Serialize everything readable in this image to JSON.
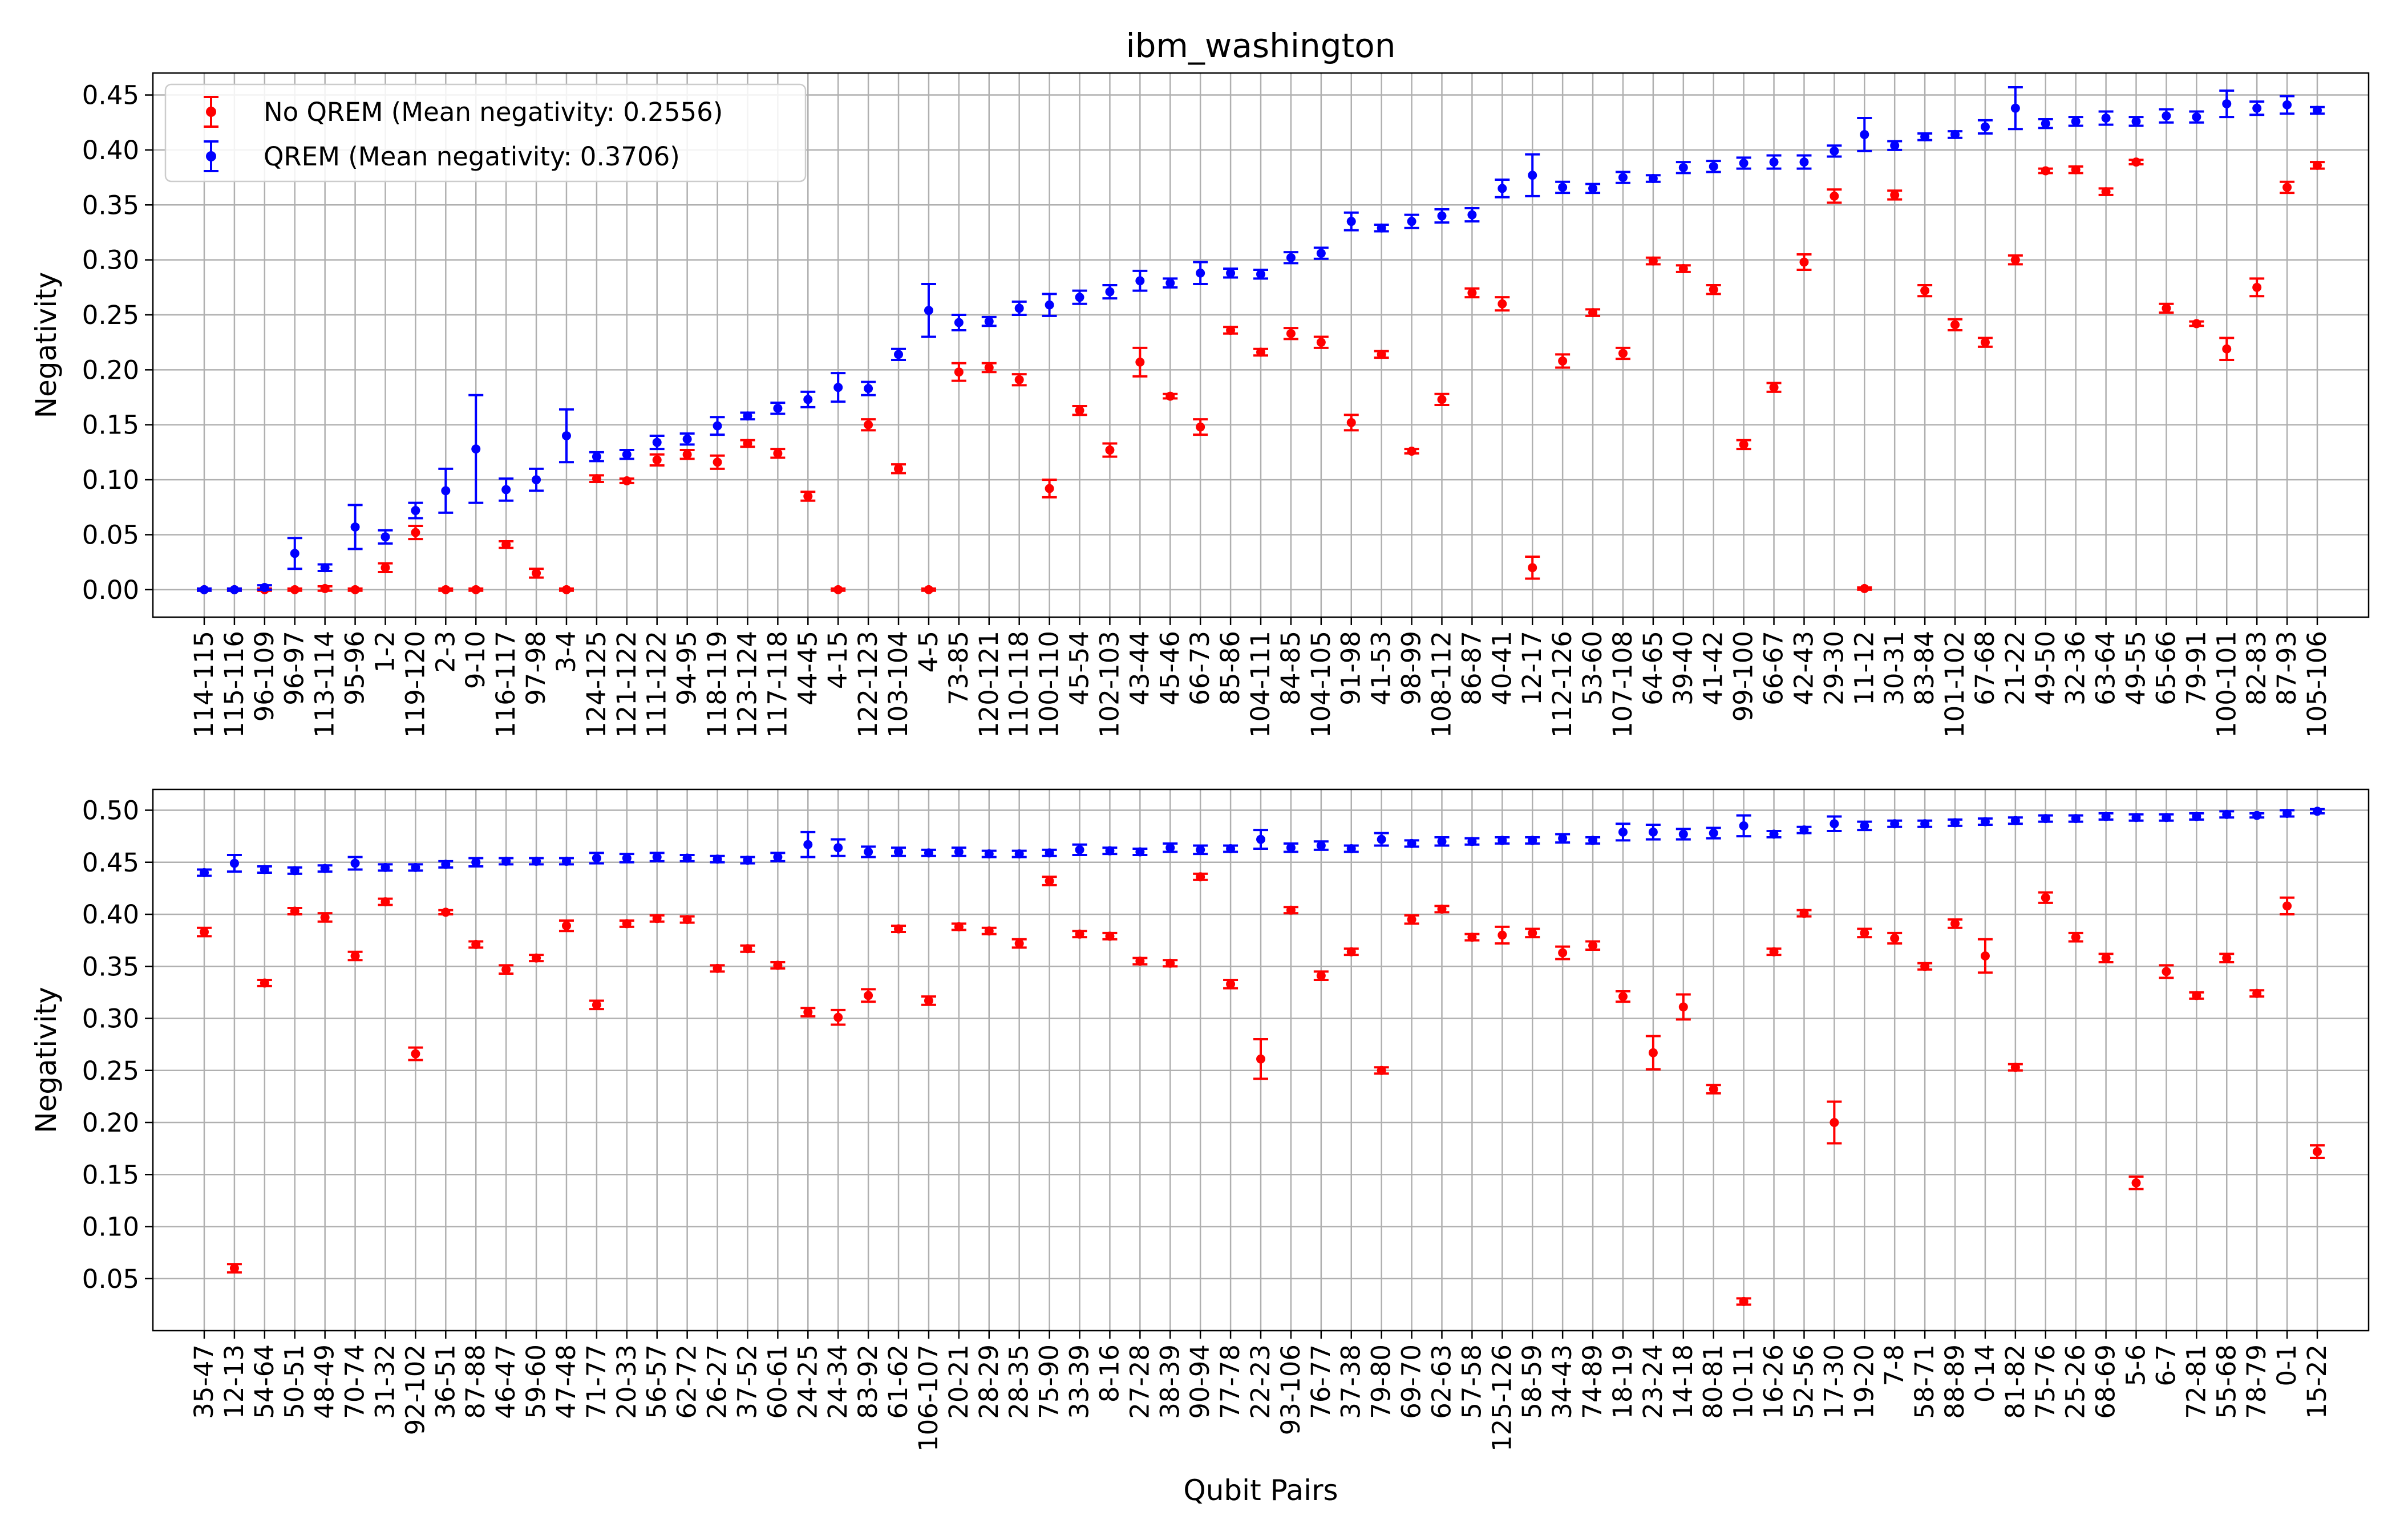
{
  "figure": {
    "title": "ibm_washington",
    "xlabel": "Qubit Pairs"
  },
  "colors": {
    "no_qrem": "#ff0000",
    "qrem": "#0000ff",
    "grid": "#b0b0b0"
  },
  "chart_data": [
    {
      "type": "scatter",
      "title": "ibm_washington",
      "xlabel": "",
      "ylabel": "Negativity",
      "ylim": [
        -0.025,
        0.47
      ],
      "yticks": [
        "0.00",
        "0.05",
        "0.10",
        "0.15",
        "0.20",
        "0.25",
        "0.30",
        "0.35",
        "0.40",
        "0.45"
      ],
      "grid": true,
      "legend_position": "top-left",
      "legend": [
        "No QREM (Mean negativity: 0.2556)",
        "QREM (Mean negativity: 0.3706)"
      ],
      "categories": [
        "114-115",
        "115-116",
        "96-109",
        "96-97",
        "113-114",
        "95-96",
        "1-2",
        "119-120",
        "2-3",
        "9-10",
        "116-117",
        "97-98",
        "3-4",
        "124-125",
        "121-122",
        "111-122",
        "94-95",
        "118-119",
        "123-124",
        "117-118",
        "44-45",
        "4-15",
        "122-123",
        "103-104",
        "4-5",
        "73-85",
        "120-121",
        "110-118",
        "100-110",
        "45-54",
        "102-103",
        "43-44",
        "45-46",
        "66-73",
        "85-86",
        "104-111",
        "84-85",
        "104-105",
        "91-98",
        "41-53",
        "98-99",
        "108-112",
        "86-87",
        "40-41",
        "12-17",
        "112-126",
        "53-60",
        "107-108",
        "64-65",
        "39-40",
        "41-42",
        "99-100",
        "66-67",
        "42-43",
        "29-30",
        "11-12",
        "30-31",
        "83-84",
        "101-102",
        "67-68",
        "21-22",
        "49-50",
        "32-36",
        "63-64",
        "49-55",
        "65-66",
        "79-91",
        "100-101",
        "82-83",
        "87-93",
        "105-106"
      ],
      "series": [
        {
          "name": "No QREM (Mean negativity: 0.2556)",
          "color": "#ff0000",
          "values": [
            0.0,
            0.0,
            0.0,
            0.0,
            0.001,
            0.0,
            0.02,
            0.052,
            0.0,
            0.0,
            0.041,
            0.015,
            0.0,
            0.101,
            0.099,
            0.118,
            0.123,
            0.116,
            0.133,
            0.124,
            0.085,
            0.0,
            0.15,
            0.11,
            0.0,
            0.198,
            0.202,
            0.191,
            0.092,
            0.163,
            0.127,
            0.207,
            0.176,
            0.148,
            0.236,
            0.216,
            0.233,
            0.225,
            0.152,
            0.214,
            0.126,
            0.173,
            0.27,
            0.26,
            0.02,
            0.208,
            0.252,
            0.215,
            0.299,
            0.292,
            0.273,
            0.132,
            0.184,
            0.298,
            0.358,
            0.001,
            0.359,
            0.272,
            0.241,
            0.225,
            0.3,
            0.381,
            0.382,
            0.362,
            0.389,
            0.256,
            0.242,
            0.219,
            0.275,
            0.366,
            0.386
          ],
          "errors": [
            0.001,
            0.001,
            0.001,
            0.001,
            0.002,
            0.001,
            0.004,
            0.006,
            0.001,
            0.001,
            0.003,
            0.004,
            0.001,
            0.003,
            0.002,
            0.005,
            0.004,
            0.006,
            0.003,
            0.004,
            0.004,
            0.001,
            0.005,
            0.004,
            0.001,
            0.008,
            0.004,
            0.005,
            0.008,
            0.004,
            0.006,
            0.013,
            0.002,
            0.007,
            0.003,
            0.003,
            0.005,
            0.005,
            0.007,
            0.003,
            0.002,
            0.005,
            0.004,
            0.006,
            0.01,
            0.006,
            0.003,
            0.005,
            0.003,
            0.003,
            0.004,
            0.004,
            0.004,
            0.007,
            0.006,
            0.001,
            0.004,
            0.005,
            0.005,
            0.004,
            0.004,
            0.002,
            0.003,
            0.003,
            0.002,
            0.004,
            0.002,
            0.01,
            0.008,
            0.005,
            0.003
          ]
        },
        {
          "name": "QREM (Mean negativity: 0.3706)",
          "color": "#0000ff",
          "values": [
            0.0,
            0.0,
            0.002,
            0.033,
            0.02,
            0.057,
            0.048,
            0.072,
            0.09,
            0.128,
            0.091,
            0.1,
            0.14,
            0.121,
            0.123,
            0.134,
            0.137,
            0.149,
            0.158,
            0.165,
            0.173,
            0.184,
            0.183,
            0.214,
            0.254,
            0.243,
            0.244,
            0.256,
            0.259,
            0.266,
            0.271,
            0.281,
            0.279,
            0.288,
            0.288,
            0.287,
            0.302,
            0.306,
            0.335,
            0.329,
            0.335,
            0.34,
            0.341,
            0.365,
            0.377,
            0.366,
            0.365,
            0.375,
            0.374,
            0.384,
            0.385,
            0.388,
            0.389,
            0.389,
            0.399,
            0.414,
            0.404,
            0.412,
            0.414,
            0.421,
            0.438,
            0.424,
            0.426,
            0.429,
            0.426,
            0.431,
            0.43,
            0.442,
            0.438,
            0.441,
            0.436
          ],
          "errors": [
            0.001,
            0.001,
            0.002,
            0.014,
            0.003,
            0.02,
            0.006,
            0.007,
            0.02,
            0.049,
            0.01,
            0.01,
            0.024,
            0.004,
            0.004,
            0.006,
            0.005,
            0.008,
            0.003,
            0.005,
            0.007,
            0.013,
            0.006,
            0.005,
            0.024,
            0.007,
            0.004,
            0.006,
            0.01,
            0.006,
            0.006,
            0.009,
            0.004,
            0.01,
            0.004,
            0.004,
            0.005,
            0.005,
            0.008,
            0.003,
            0.006,
            0.006,
            0.006,
            0.008,
            0.019,
            0.005,
            0.004,
            0.005,
            0.003,
            0.005,
            0.005,
            0.005,
            0.006,
            0.006,
            0.005,
            0.015,
            0.004,
            0.003,
            0.003,
            0.006,
            0.019,
            0.004,
            0.004,
            0.006,
            0.004,
            0.006,
            0.005,
            0.012,
            0.006,
            0.008,
            0.003
          ]
        }
      ]
    },
    {
      "type": "scatter",
      "title": "",
      "xlabel": "Qubit Pairs",
      "ylabel": "Negativity",
      "ylim": [
        0.0,
        0.52
      ],
      "yticks": [
        "0.05",
        "0.10",
        "0.15",
        "0.20",
        "0.25",
        "0.30",
        "0.35",
        "0.40",
        "0.45",
        "0.50"
      ],
      "grid": true,
      "categories": [
        "35-47",
        "12-13",
        "54-64",
        "50-51",
        "48-49",
        "70-74",
        "31-32",
        "92-102",
        "36-51",
        "87-88",
        "46-47",
        "59-60",
        "47-48",
        "71-77",
        "20-33",
        "56-57",
        "62-72",
        "26-27",
        "37-52",
        "60-61",
        "24-25",
        "24-34",
        "83-92",
        "61-62",
        "106-107",
        "20-21",
        "28-29",
        "28-35",
        "75-90",
        "33-39",
        "8-16",
        "27-28",
        "38-39",
        "90-94",
        "77-78",
        "22-23",
        "93-106",
        "76-77",
        "37-38",
        "79-80",
        "69-70",
        "62-63",
        "57-58",
        "125-126",
        "58-59",
        "34-43",
        "74-89",
        "18-19",
        "23-24",
        "14-18",
        "80-81",
        "10-11",
        "16-26",
        "52-56",
        "17-30",
        "19-20",
        "7-8",
        "58-71",
        "88-89",
        "0-14",
        "81-82",
        "75-76",
        "25-26",
        "68-69",
        "5-6",
        "6-7",
        "72-81",
        "55-68",
        "78-79",
        "0-1",
        "15-22"
      ],
      "series": [
        {
          "name": "No QREM (Mean negativity: 0.2556)",
          "color": "#ff0000",
          "values": [
            0.383,
            0.06,
            0.334,
            0.403,
            0.397,
            0.36,
            0.412,
            0.266,
            0.402,
            0.371,
            0.347,
            0.358,
            0.389,
            0.313,
            0.391,
            0.396,
            0.395,
            0.348,
            0.367,
            0.351,
            0.306,
            0.301,
            0.322,
            0.386,
            0.317,
            0.388,
            0.384,
            0.372,
            0.432,
            0.381,
            0.379,
            0.355,
            0.353,
            0.436,
            0.333,
            0.261,
            0.404,
            0.341,
            0.364,
            0.25,
            0.395,
            0.405,
            0.378,
            0.38,
            0.382,
            0.363,
            0.37,
            0.321,
            0.267,
            0.311,
            0.232,
            0.028,
            0.364,
            0.401,
            0.2,
            0.382,
            0.377,
            0.35,
            0.391,
            0.36,
            0.253,
            0.416,
            0.378,
            0.358,
            0.142,
            0.345,
            0.322,
            0.358,
            0.324,
            0.408,
            0.172
          ],
          "errors": [
            0.004,
            0.004,
            0.003,
            0.003,
            0.004,
            0.004,
            0.003,
            0.006,
            0.002,
            0.003,
            0.004,
            0.003,
            0.005,
            0.004,
            0.003,
            0.003,
            0.003,
            0.003,
            0.003,
            0.003,
            0.004,
            0.007,
            0.006,
            0.003,
            0.004,
            0.003,
            0.003,
            0.004,
            0.004,
            0.003,
            0.003,
            0.003,
            0.003,
            0.003,
            0.004,
            0.019,
            0.003,
            0.004,
            0.003,
            0.003,
            0.004,
            0.003,
            0.003,
            0.008,
            0.004,
            0.006,
            0.004,
            0.005,
            0.016,
            0.012,
            0.004,
            0.003,
            0.003,
            0.003,
            0.02,
            0.004,
            0.005,
            0.003,
            0.004,
            0.016,
            0.003,
            0.005,
            0.004,
            0.004,
            0.006,
            0.006,
            0.003,
            0.004,
            0.003,
            0.008,
            0.006
          ]
        },
        {
          "name": "QREM (Mean negativity: 0.3706)",
          "color": "#0000ff",
          "values": [
            0.44,
            0.449,
            0.443,
            0.442,
            0.444,
            0.449,
            0.445,
            0.445,
            0.448,
            0.45,
            0.451,
            0.451,
            0.451,
            0.454,
            0.454,
            0.455,
            0.454,
            0.453,
            0.452,
            0.455,
            0.467,
            0.464,
            0.46,
            0.46,
            0.459,
            0.46,
            0.458,
            0.458,
            0.459,
            0.462,
            0.461,
            0.46,
            0.464,
            0.462,
            0.463,
            0.472,
            0.464,
            0.466,
            0.463,
            0.472,
            0.468,
            0.47,
            0.47,
            0.471,
            0.471,
            0.473,
            0.471,
            0.479,
            0.479,
            0.477,
            0.478,
            0.485,
            0.477,
            0.481,
            0.487,
            0.485,
            0.487,
            0.487,
            0.488,
            0.489,
            0.49,
            0.492,
            0.492,
            0.494,
            0.493,
            0.493,
            0.494,
            0.496,
            0.495,
            0.497,
            0.499
          ],
          "errors": [
            0.003,
            0.008,
            0.003,
            0.003,
            0.003,
            0.006,
            0.003,
            0.003,
            0.003,
            0.004,
            0.003,
            0.003,
            0.003,
            0.005,
            0.004,
            0.004,
            0.003,
            0.003,
            0.003,
            0.004,
            0.012,
            0.008,
            0.005,
            0.004,
            0.003,
            0.004,
            0.003,
            0.003,
            0.003,
            0.005,
            0.003,
            0.003,
            0.004,
            0.004,
            0.003,
            0.009,
            0.004,
            0.004,
            0.003,
            0.006,
            0.003,
            0.004,
            0.003,
            0.003,
            0.003,
            0.004,
            0.003,
            0.008,
            0.007,
            0.005,
            0.005,
            0.01,
            0.003,
            0.003,
            0.007,
            0.004,
            0.003,
            0.003,
            0.003,
            0.003,
            0.003,
            0.003,
            0.003,
            0.003,
            0.003,
            0.003,
            0.003,
            0.003,
            0.002,
            0.003,
            0.002
          ]
        }
      ]
    }
  ]
}
